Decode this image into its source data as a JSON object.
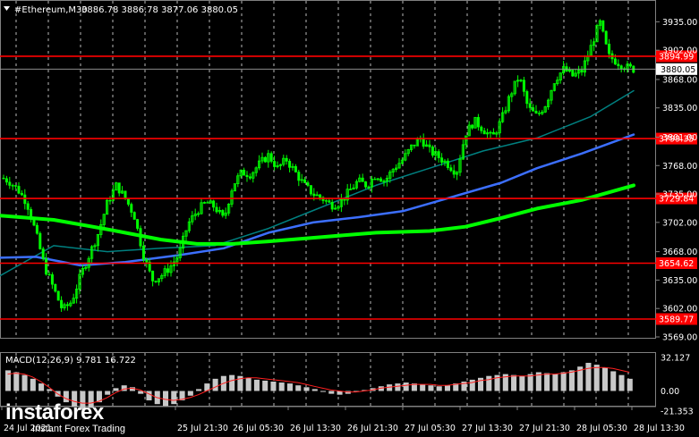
{
  "header": {
    "symbol": "#Ethereum,M30",
    "ohlc": "3886.78 3886.78 3877.06 3880.05"
  },
  "macd": {
    "label": "MACD(12,26,9) 9.781 16.722",
    "axis": [
      "32.127",
      "0.00",
      "-21.353"
    ]
  },
  "logo": {
    "brand": "instaforex",
    "tagline": "Instant Forex Trading"
  },
  "colors": {
    "background": "#000000",
    "bull": "#00ff00",
    "ma_fast": "#008080",
    "ma_mid": "#3c6fff",
    "ma_slow": "#00ff00",
    "level": "#ff0000",
    "signal": "#ff2020"
  },
  "chart_data": {
    "type": "candlestick",
    "symbol": "#Ethereum",
    "timeframe": "M30",
    "ylim": [
      3569.0,
      3952.0
    ],
    "yticks": [
      3935.0,
      3902.0,
      3868.0,
      3835.0,
      3801.0,
      3768.0,
      3735.0,
      3702.0,
      3668.0,
      3635.0,
      3602.0,
      3569.0
    ],
    "current_price": 3880.05,
    "levels": [
      3894.99,
      3799.35,
      3729.84,
      3654.62,
      3589.77
    ],
    "xticks": [
      "24 Jul 2021",
      "25 Jul 21:30",
      "26 Jul 05:30",
      "26 Jul 13:30",
      "26 Jul 21:30",
      "27 Jul 05:30",
      "27 Jul 13:30",
      "27 Jul 21:30",
      "28 Jul 05:30",
      "28 Jul 13:30"
    ],
    "price_path": [
      [
        0,
        3755
      ],
      [
        10,
        3750
      ],
      [
        20,
        3740
      ],
      [
        30,
        3725
      ],
      [
        40,
        3690
      ],
      [
        50,
        3650
      ],
      [
        60,
        3625
      ],
      [
        70,
        3600
      ],
      [
        80,
        3610
      ],
      [
        90,
        3640
      ],
      [
        100,
        3665
      ],
      [
        110,
        3690
      ],
      [
        120,
        3725
      ],
      [
        130,
        3745
      ],
      [
        140,
        3730
      ],
      [
        150,
        3710
      ],
      [
        160,
        3665
      ],
      [
        170,
        3635
      ],
      [
        180,
        3640
      ],
      [
        190,
        3650
      ],
      [
        200,
        3665
      ],
      [
        210,
        3700
      ],
      [
        220,
        3715
      ],
      [
        230,
        3725
      ],
      [
        240,
        3720
      ],
      [
        250,
        3705
      ],
      [
        260,
        3745
      ],
      [
        270,
        3760
      ],
      [
        280,
        3758
      ],
      [
        290,
        3770
      ],
      [
        300,
        3780
      ],
      [
        310,
        3765
      ],
      [
        320,
        3775
      ],
      [
        330,
        3760
      ],
      [
        340,
        3745
      ],
      [
        350,
        3735
      ],
      [
        360,
        3730
      ],
      [
        370,
        3722
      ],
      [
        380,
        3725
      ],
      [
        390,
        3738
      ],
      [
        400,
        3750
      ],
      [
        410,
        3745
      ],
      [
        420,
        3758
      ],
      [
        430,
        3750
      ],
      [
        440,
        3765
      ],
      [
        450,
        3775
      ],
      [
        460,
        3790
      ],
      [
        470,
        3800
      ],
      [
        480,
        3785
      ],
      [
        490,
        3778
      ],
      [
        500,
        3770
      ],
      [
        510,
        3760
      ],
      [
        520,
        3805
      ],
      [
        530,
        3820
      ],
      [
        540,
        3810
      ],
      [
        550,
        3800
      ],
      [
        560,
        3820
      ],
      [
        570,
        3850
      ],
      [
        580,
        3872
      ],
      [
        590,
        3835
      ],
      [
        600,
        3825
      ],
      [
        610,
        3840
      ],
      [
        620,
        3868
      ],
      [
        630,
        3880
      ],
      [
        640,
        3872
      ],
      [
        650,
        3878
      ],
      [
        660,
        3905
      ],
      [
        670,
        3935
      ],
      [
        680,
        3895
      ],
      [
        690,
        3888
      ],
      [
        700,
        3882
      ],
      [
        708,
        3880
      ]
    ],
    "ma_fast": [
      [
        0,
        3640
      ],
      [
        60,
        3675
      ],
      [
        120,
        3668
      ],
      [
        180,
        3672
      ],
      [
        240,
        3675
      ],
      [
        300,
        3695
      ],
      [
        360,
        3720
      ],
      [
        420,
        3745
      ],
      [
        480,
        3765
      ],
      [
        540,
        3785
      ],
      [
        600,
        3800
      ],
      [
        660,
        3825
      ],
      [
        708,
        3855
      ]
    ],
    "ma_mid": [
      [
        0,
        3661
      ],
      [
        40,
        3662
      ],
      [
        90,
        3652
      ],
      [
        140,
        3656
      ],
      [
        200,
        3664
      ],
      [
        250,
        3672
      ],
      [
        300,
        3690
      ],
      [
        350,
        3702
      ],
      [
        400,
        3708
      ],
      [
        450,
        3715
      ],
      [
        500,
        3730
      ],
      [
        560,
        3748
      ],
      [
        600,
        3765
      ],
      [
        650,
        3782
      ],
      [
        708,
        3804
      ]
    ],
    "ma_slow": [
      [
        0,
        3710
      ],
      [
        60,
        3705
      ],
      [
        120,
        3694
      ],
      [
        180,
        3682
      ],
      [
        220,
        3677
      ],
      [
        260,
        3677
      ],
      [
        300,
        3680
      ],
      [
        360,
        3685
      ],
      [
        420,
        3690
      ],
      [
        480,
        3692
      ],
      [
        520,
        3697
      ],
      [
        560,
        3707
      ],
      [
        600,
        3718
      ],
      [
        650,
        3728
      ],
      [
        708,
        3745
      ]
    ],
    "macd_hist": [
      22,
      20,
      17,
      13,
      8,
      2,
      -6,
      -12,
      -17,
      -20,
      -18,
      -12,
      -4,
      3,
      6,
      4,
      -3,
      -10,
      -14,
      -16,
      -14,
      -10,
      -5,
      2,
      8,
      13,
      16,
      17,
      16,
      14,
      12,
      11,
      10,
      9,
      8,
      6,
      4,
      2,
      -1,
      -3,
      -4,
      -3,
      -1,
      1,
      3,
      5,
      7,
      8,
      9,
      8,
      7,
      6,
      5,
      6,
      8,
      10,
      12,
      14,
      16,
      17,
      18,
      17,
      16,
      18,
      20,
      19,
      18,
      20,
      22,
      26,
      30,
      28,
      25,
      21,
      17,
      13
    ],
    "macd_signal": [
      18,
      19,
      18,
      15,
      10,
      4,
      -3,
      -8,
      -11,
      -13,
      -13,
      -11,
      -7,
      -2,
      2,
      3,
      1,
      -3,
      -7,
      -9,
      -10,
      -9,
      -7,
      -4,
      0,
      4,
      8,
      11,
      13,
      14,
      14,
      13,
      12,
      11,
      10,
      9,
      7,
      5,
      3,
      1,
      0,
      -1,
      -1,
      0,
      1,
      3,
      4,
      5,
      6,
      7,
      7,
      7,
      6,
      6,
      7,
      8,
      9,
      11,
      12,
      14,
      15,
      16,
      16,
      16,
      17,
      18,
      18,
      19,
      20,
      22,
      24,
      25,
      25,
      24,
      22,
      20
    ]
  }
}
